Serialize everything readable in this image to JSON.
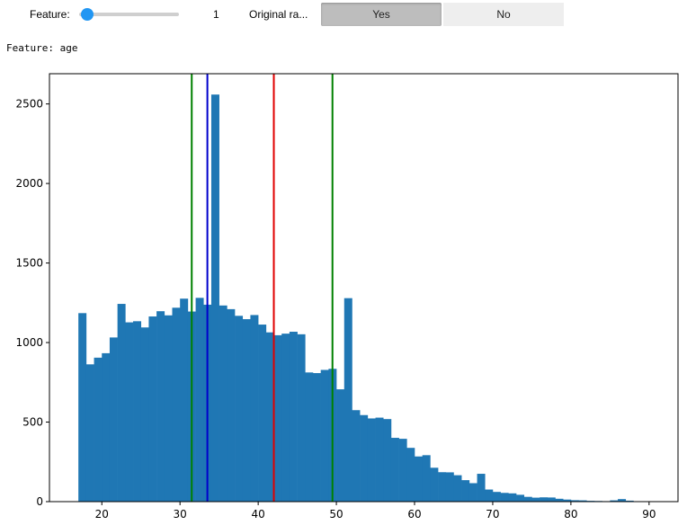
{
  "controls": {
    "feature_label": "Feature:",
    "feature_value": "1",
    "original_label": "Original ra...",
    "yes_label": "Yes",
    "no_label": "No",
    "slider_min": 0,
    "slider_max": 14,
    "slider_value": 1,
    "slider_color": "#2196f3"
  },
  "output": {
    "feature_line": "Feature: age"
  },
  "chart_data": {
    "type": "bar",
    "title": "",
    "xlabel": "",
    "ylabel": "",
    "xlim": [
      13.3,
      93.7
    ],
    "ylim": [
      0,
      2690
    ],
    "xticks": [
      20,
      30,
      40,
      50,
      60,
      70,
      80,
      90
    ],
    "yticks": [
      0,
      500,
      1000,
      1500,
      2000,
      2500
    ],
    "bar_color": "#1f77b4",
    "bin_start": 17,
    "bin_width": 1,
    "values": [
      1185,
      863,
      905,
      933,
      1032,
      1243,
      1127,
      1134,
      1095,
      1164,
      1197,
      1171,
      1219,
      1276,
      1195,
      1281,
      1238,
      2559,
      1233,
      1210,
      1168,
      1147,
      1173,
      1113,
      1064,
      1046,
      1056,
      1068,
      1052,
      812,
      808,
      828,
      835,
      706,
      1279,
      575,
      544,
      523,
      528,
      519,
      401,
      395,
      338,
      284,
      292,
      213,
      185,
      184,
      166,
      135,
      116,
      175,
      76,
      61,
      55,
      52,
      43,
      30,
      25,
      27,
      26,
      18,
      13,
      9,
      8,
      5,
      4,
      3,
      8,
      16,
      6
    ],
    "vlines": [
      {
        "x": 31.5,
        "color": "#008000"
      },
      {
        "x": 33.5,
        "color": "#0000cc"
      },
      {
        "x": 42.0,
        "color": "#e00000"
      },
      {
        "x": 49.5,
        "color": "#008000"
      }
    ]
  }
}
